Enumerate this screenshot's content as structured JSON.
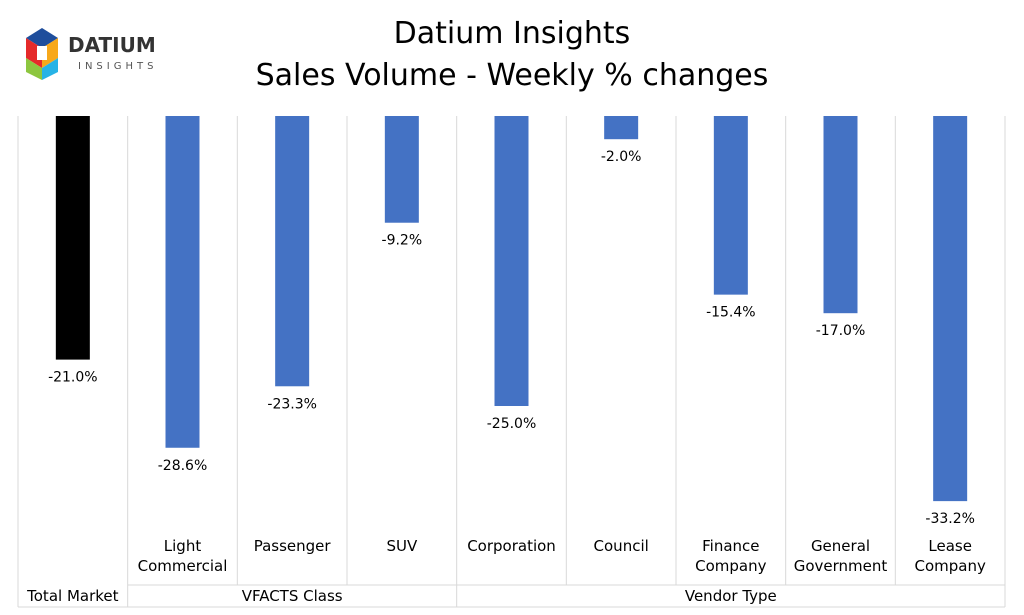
{
  "logo": {
    "brand": "DATIUM",
    "sub": "INSIGHTS",
    "colors": [
      "#1f4e9c",
      "#e52a2a",
      "#f7a81b",
      "#27b3e6",
      "#8dc63f",
      "#7a3e9d"
    ]
  },
  "title": "Datium Insights",
  "subtitle": "Sales Volume - Weekly % changes",
  "chart_data": {
    "type": "bar",
    "title": "Datium Insights",
    "subtitle": "Sales Volume - Weekly % changes",
    "ylim": [
      -35,
      0
    ],
    "grid": false,
    "categories": [
      {
        "label": [
          "",
          ""
        ],
        "group": "Total Market",
        "value": -21.0,
        "display": "-21.0%",
        "color": "#000000"
      },
      {
        "label": [
          "Light",
          "Commercial"
        ],
        "group": "VFACTS Class",
        "value": -28.6,
        "display": "-28.6%",
        "color": "#4472c4"
      },
      {
        "label": [
          "Passenger",
          ""
        ],
        "group": "VFACTS Class",
        "value": -23.3,
        "display": "-23.3%",
        "color": "#4472c4"
      },
      {
        "label": [
          "SUV",
          ""
        ],
        "group": "VFACTS Class",
        "value": -9.2,
        "display": "-9.2%",
        "color": "#4472c4"
      },
      {
        "label": [
          "Corporation",
          ""
        ],
        "group": "Vendor Type",
        "value": -25.0,
        "display": "-25.0%",
        "color": "#4472c4"
      },
      {
        "label": [
          "Council",
          ""
        ],
        "group": "Vendor Type",
        "value": -2.0,
        "display": "-2.0%",
        "color": "#4472c4"
      },
      {
        "label": [
          "Finance",
          "Company"
        ],
        "group": "Vendor Type",
        "value": -15.4,
        "display": "-15.4%",
        "color": "#4472c4"
      },
      {
        "label": [
          "General",
          "Government"
        ],
        "group": "Vendor Type",
        "value": -17.0,
        "display": "-17.0%",
        "color": "#4472c4"
      },
      {
        "label": [
          "Lease",
          "Company"
        ],
        "group": "Vendor Type",
        "value": -33.2,
        "display": "-33.2%",
        "color": "#4472c4"
      }
    ],
    "groups": [
      {
        "name": "Total Market",
        "count": 1
      },
      {
        "name": "VFACTS Class",
        "count": 3
      },
      {
        "name": "Vendor Type",
        "count": 5
      }
    ]
  }
}
